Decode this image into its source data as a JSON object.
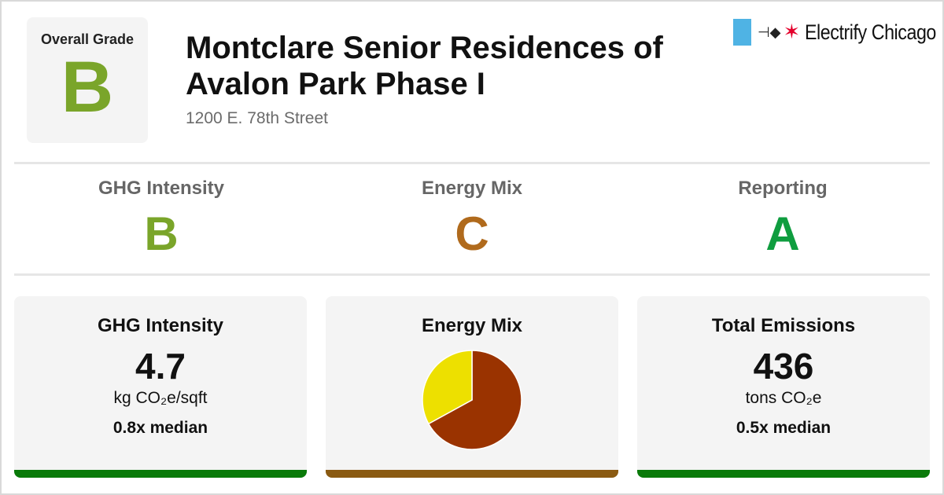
{
  "header": {
    "overall_label": "Overall Grade",
    "overall_grade": "B",
    "overall_color": "#7aa52a",
    "title": "Montclare Senior Residences of Avalon Park Phase I",
    "address": "1200 E. 78th Street"
  },
  "logo": {
    "flag_color": "#4fb3e4",
    "plug_icon": "⊣◆",
    "star_icon": "✶",
    "name": "Electrify Chicago"
  },
  "grades": [
    {
      "label": "GHG Intensity",
      "grade": "B",
      "color": "#7aa52a"
    },
    {
      "label": "Energy Mix",
      "grade": "C",
      "color": "#b06a1c"
    },
    {
      "label": "Reporting",
      "grade": "A",
      "color": "#0f9d3f"
    }
  ],
  "cards": {
    "ghg": {
      "title": "GHG Intensity",
      "value": "4.7",
      "unit": "kg CO₂e/sqft",
      "median": "0.8x median",
      "bar_color": "#0a7a0a"
    },
    "energy": {
      "title": "Energy Mix",
      "bar_color": "#8a5a12"
    },
    "emissions": {
      "title": "Total Emissions",
      "value": "436",
      "unit": "tons CO₂e",
      "median": "0.5x median",
      "bar_color": "#0a7a0a"
    }
  },
  "chart_data": {
    "type": "pie",
    "slices": [
      {
        "value": 67,
        "color": "#9a3300"
      },
      {
        "value": 33,
        "color": "#ede000"
      }
    ]
  }
}
